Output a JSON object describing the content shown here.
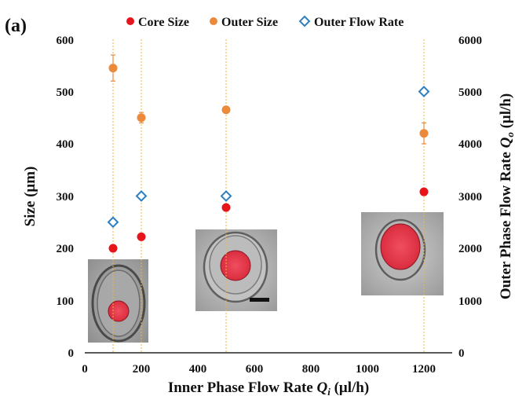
{
  "panel_label": "(a)",
  "colors": {
    "core": "#e8141c",
    "outer": "#ec8a3c",
    "flow": "#2e7fc0",
    "guide": "#f2b53a"
  },
  "chart_data": {
    "type": "scatter",
    "x_label": "Inner Phase Flow Rate ",
    "x_label_symbol": "Q",
    "x_label_sub": "i",
    "x_label_unit": " (μl/h)",
    "y_left_label": "Size (μm)",
    "y_right_label": "Outer Phase Flow Rate ",
    "y_right_symbol": "Q",
    "y_right_sub": "o",
    "y_right_unit": " (μl/h)",
    "xlim": [
      0,
      1300
    ],
    "ylim_left": [
      0,
      600
    ],
    "ylim_right": [
      0,
      6000
    ],
    "x_ticks": [
      "0",
      "200",
      "400",
      "600",
      "800",
      "1000",
      "1200"
    ],
    "y_left_ticks": [
      "0",
      "100",
      "200",
      "300",
      "400",
      "500",
      "600"
    ],
    "y_right_ticks": [
      "0",
      "1000",
      "2000",
      "3000",
      "4000",
      "5000",
      "6000"
    ],
    "legend": [
      "Core Size",
      "Outer Size",
      "Outer Flow Rate"
    ],
    "legend_position": "top",
    "series": [
      {
        "name": "Core Size",
        "axis": "left",
        "marker": "circle-filled",
        "points": [
          {
            "x": 100,
            "y": 200
          },
          {
            "x": 200,
            "y": 222
          },
          {
            "x": 500,
            "y": 278
          },
          {
            "x": 1200,
            "y": 308
          }
        ]
      },
      {
        "name": "Outer Size",
        "axis": "left",
        "marker": "circle-filled",
        "points": [
          {
            "x": 100,
            "y": 545,
            "err": 25
          },
          {
            "x": 200,
            "y": 450,
            "err": 10
          },
          {
            "x": 500,
            "y": 465,
            "err": 0
          },
          {
            "x": 1200,
            "y": 420,
            "err": 20
          }
        ]
      },
      {
        "name": "Outer Flow Rate",
        "axis": "right",
        "marker": "diamond-open",
        "points": [
          {
            "x": 100,
            "y": 2500
          },
          {
            "x": 200,
            "y": 3000
          },
          {
            "x": 500,
            "y": 3000
          },
          {
            "x": 1200,
            "y": 5000
          }
        ]
      }
    ],
    "guide_lines_x": [
      100,
      200,
      500,
      1200
    ],
    "insets": [
      "droplet micrograph at 100",
      "droplet micrograph at 500",
      "droplet micrograph at 1200"
    ]
  }
}
